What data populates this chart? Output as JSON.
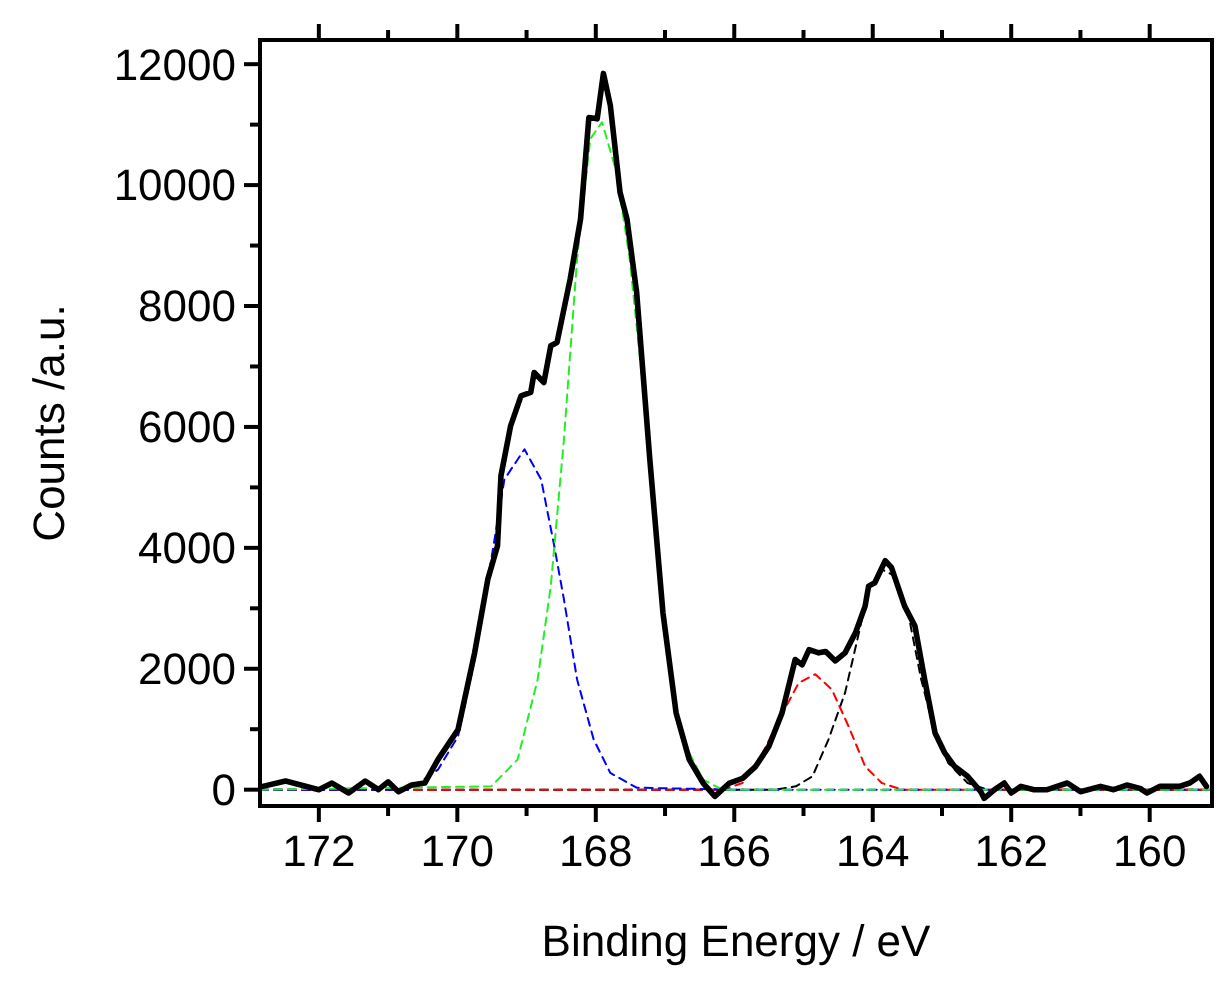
{
  "chart_data": {
    "type": "line",
    "xlabel": "Binding Energy / eV",
    "ylabel": "Counts /a.u.",
    "xlim": [
      172.85,
      159.1
    ],
    "ylim": [
      -270,
      12400
    ],
    "xticks": [
      172,
      {
        "value": 171,
        "label": null
      },
      170,
      {
        "value": 169,
        "label": null
      },
      168,
      {
        "value": 167,
        "label": null
      },
      166,
      {
        "value": 165,
        "label": null
      },
      164,
      {
        "value": 163,
        "label": null
      },
      162,
      {
        "value": 161,
        "label": null
      },
      160
    ],
    "yticks": [
      0,
      {
        "value": 1000,
        "label": null
      },
      2000,
      {
        "value": 3000,
        "label": null
      },
      4000,
      {
        "value": 5000,
        "label": null
      },
      6000,
      {
        "value": 7000,
        "label": null
      },
      8000,
      {
        "value": 9000,
        "label": null
      },
      10000,
      {
        "value": 11000,
        "label": null
      },
      12000
    ],
    "grid": false,
    "marker": "none",
    "series": [
      {
        "color": "#000000",
        "line_style": "dashed",
        "x": [
          172.85,
          165.4,
          165.11,
          164.87,
          164.64,
          164.4,
          164.2,
          164.06,
          163.87,
          163.68,
          163.49,
          163.3,
          163.1,
          162.91,
          162.63,
          162.34,
          159.1
        ],
        "values": [
          0,
          0,
          55,
          221,
          828,
          1601,
          2594,
          3312,
          3643,
          3533,
          2926,
          1822,
          938,
          442,
          110,
          0,
          0
        ]
      },
      {
        "color": "#ff0000",
        "line_style": "dashed",
        "x": [
          172.85,
          166.17,
          165.88,
          165.59,
          165.3,
          165.07,
          164.83,
          164.59,
          164.35,
          164.11,
          163.87,
          163.58,
          159.1
        ],
        "values": [
          0,
          0,
          110,
          607,
          1270,
          1766,
          1910,
          1656,
          1049,
          386,
          110,
          0,
          0
        ]
      },
      {
        "color": "#0000ff",
        "line_style": "dashed",
        "x": [
          172.85,
          170.7,
          170.28,
          169.99,
          169.75,
          169.51,
          169.32,
          169.03,
          168.79,
          168.6,
          168.46,
          168.27,
          168.03,
          167.79,
          167.41,
          166.0,
          159.1
        ],
        "values": [
          0,
          0,
          331,
          883,
          2153,
          3809,
          5134,
          5630,
          5134,
          4030,
          3146,
          1822,
          828,
          276,
          33,
          0,
          0
        ]
      },
      {
        "color": "#22ee22",
        "line_style": "dashed",
        "x": [
          172.85,
          169.51,
          169.13,
          168.84,
          168.65,
          168.46,
          168.27,
          168.08,
          167.91,
          167.7,
          167.51,
          167.32,
          167.13,
          166.94,
          166.75,
          166.45,
          166.17,
          159.1
        ],
        "values": [
          0,
          55,
          497,
          1822,
          3367,
          5796,
          8777,
          10764,
          11040,
          10212,
          8777,
          6680,
          4030,
          2042,
          828,
          166,
          0,
          0
        ]
      },
      {
        "color": "#000000",
        "line_style": "solid",
        "x": [
          172.81,
          172.48,
          172.0,
          171.81,
          171.57,
          171.33,
          171.14,
          171.0,
          170.85,
          170.66,
          170.47,
          170.28,
          169.99,
          169.75,
          169.56,
          169.42,
          169.37,
          169.23,
          169.08,
          168.94,
          168.89,
          168.75,
          168.65,
          168.56,
          168.37,
          168.22,
          168.1,
          167.98,
          167.89,
          167.79,
          167.65,
          167.55,
          167.41,
          167.22,
          167.03,
          166.84,
          166.65,
          166.45,
          166.28,
          166.07,
          165.88,
          165.69,
          165.5,
          165.31,
          165.12,
          165.02,
          164.92,
          164.78,
          164.68,
          164.54,
          164.4,
          164.25,
          164.11,
          164.06,
          163.97,
          163.82,
          163.73,
          163.54,
          163.39,
          163.25,
          163.1,
          162.96,
          162.82,
          162.63,
          162.44,
          162.39,
          162.24,
          162.1,
          162.0,
          161.86,
          161.67,
          161.48,
          161.19,
          161.0,
          160.71,
          160.52,
          160.33,
          160.14,
          160.04,
          159.85,
          159.57,
          159.42,
          159.28,
          159.18
        ],
        "values": [
          55,
          143,
          0,
          110,
          -55,
          143,
          0,
          130,
          -33,
          77,
          110,
          497,
          994,
          2263,
          3478,
          4030,
          5190,
          6018,
          6514,
          6570,
          6900,
          6735,
          7342,
          7397,
          8446,
          9440,
          11118,
          11096,
          11847,
          11317,
          9881,
          9440,
          8225,
          5465,
          2926,
          1270,
          497,
          110,
          -110,
          110,
          188,
          386,
          718,
          1270,
          2153,
          2064,
          2318,
          2263,
          2285,
          2130,
          2263,
          2594,
          3036,
          3367,
          3422,
          3787,
          3676,
          3036,
          2705,
          1822,
          938,
          607,
          386,
          221,
          -33,
          -144,
          0,
          110,
          -55,
          55,
          0,
          0,
          110,
          -33,
          55,
          0,
          77,
          22,
          -55,
          55,
          55,
          110,
          221,
          55
        ]
      }
    ]
  }
}
